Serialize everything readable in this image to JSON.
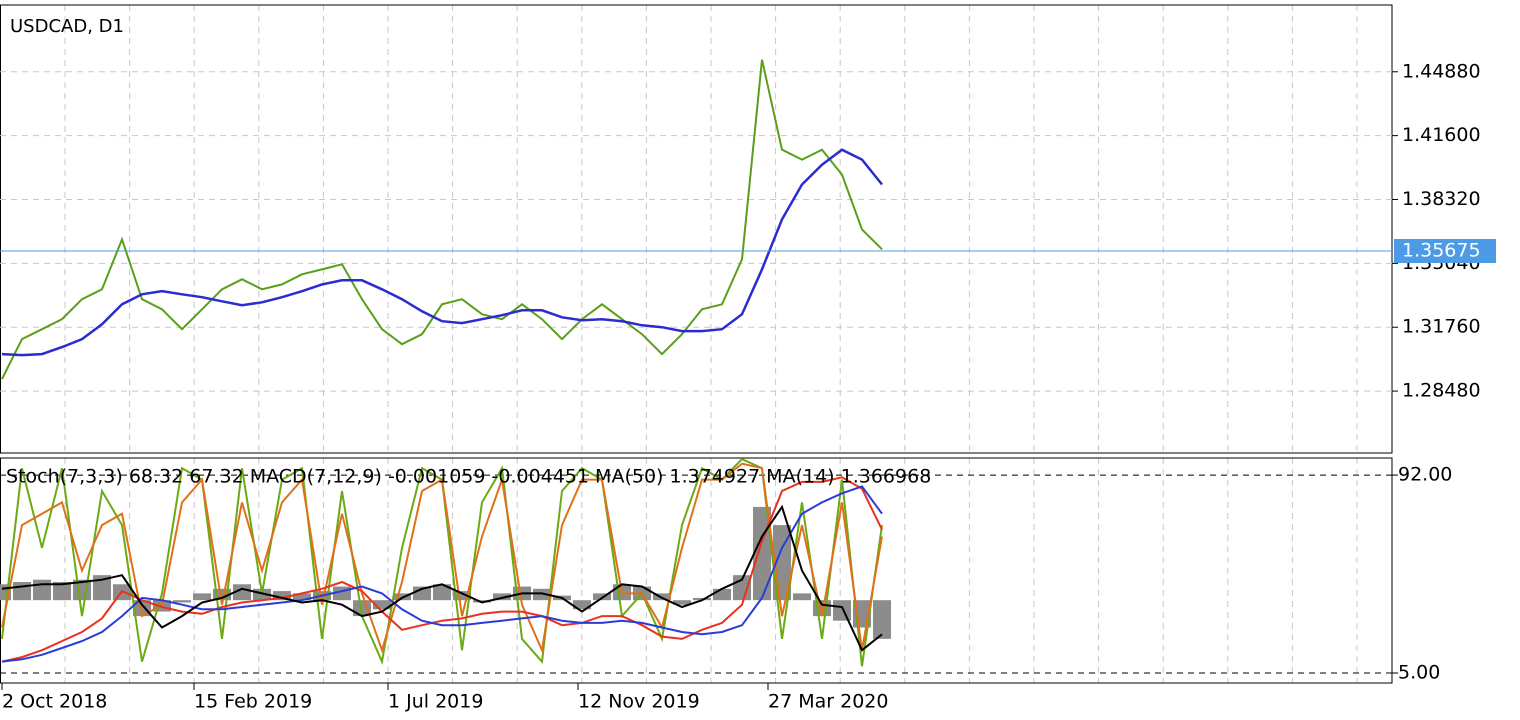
{
  "chart_data": [
    {
      "type": "line",
      "title": "USDCAD, D1",
      "x": [
        0,
        10,
        20,
        30,
        40,
        50,
        60,
        70,
        80,
        90,
        100,
        110,
        120,
        130,
        140,
        150,
        160,
        170,
        180,
        190,
        200,
        210,
        220,
        230,
        240,
        250,
        260,
        270,
        280,
        290,
        300,
        310,
        320,
        330,
        340,
        350,
        360,
        370,
        380,
        390,
        400,
        410,
        420,
        430,
        440
      ],
      "series": [
        {
          "name": "Close",
          "color": "#5a9e1a",
          "values": [
            1.291,
            1.3115,
            1.3166,
            1.3217,
            1.332,
            1.3371,
            1.3627,
            1.332,
            1.3268,
            1.3166,
            1.3268,
            1.3371,
            1.3422,
            1.3371,
            1.3396,
            1.3448,
            1.3473,
            1.3499,
            1.332,
            1.3166,
            1.3089,
            1.314,
            1.3294,
            1.332,
            1.3243,
            1.3217,
            1.3294,
            1.3217,
            1.3115,
            1.3217,
            1.3294,
            1.3217,
            1.314,
            1.3038,
            1.314,
            1.3268,
            1.3294,
            1.3525,
            1.455,
            1.4088,
            1.4037,
            1.4088,
            1.396,
            1.3678,
            1.3576
          ]
        },
        {
          "name": "MA(50)",
          "color": "#2b2bd0",
          "values": [
            1.3038,
            1.3033,
            1.3038,
            1.3074,
            1.3115,
            1.3191,
            1.3294,
            1.3345,
            1.3361,
            1.3345,
            1.333,
            1.3309,
            1.3289,
            1.3304,
            1.333,
            1.3361,
            1.3396,
            1.3417,
            1.3417,
            1.3371,
            1.332,
            1.3258,
            1.3207,
            1.3197,
            1.3217,
            1.3238,
            1.3263,
            1.3263,
            1.3227,
            1.3212,
            1.3217,
            1.3207,
            1.3186,
            1.3176,
            1.3156,
            1.3156,
            1.3166,
            1.3243,
            1.3473,
            1.373,
            1.3909,
            1.4011,
            1.4088,
            1.4037,
            1.3909
          ]
        }
      ],
      "current_price": {
        "value": 1.35675,
        "label": "1.35675",
        "color": "#4d9be6"
      },
      "xlim": [
        -1,
        695
      ],
      "xticks": [
        {
          "value": 0,
          "label": "2 Oct 2018"
        },
        {
          "value": 96,
          "label": "15 Feb 2019"
        },
        {
          "value": 193,
          "label": "1 Jul 2019"
        },
        {
          "value": 288,
          "label": "12 Nov 2019"
        },
        {
          "value": 383,
          "label": "27 Mar 2020"
        }
      ],
      "ylim": [
        1.253,
        1.4831
      ],
      "yticks": [
        {
          "value": 1.2848,
          "label": "1.28480"
        },
        {
          "value": 1.3176,
          "label": "1.31760"
        },
        {
          "value": 1.3504,
          "label": "1.35040"
        },
        {
          "value": 1.3832,
          "label": "1.38320"
        },
        {
          "value": 1.416,
          "label": "1.41600"
        },
        {
          "value": 1.4488,
          "label": "1.44880"
        }
      ],
      "grid": true
    },
    {
      "type": "line",
      "title": "Stoch(7,3,3) 68.32 67.32 MACD(7,12,9) -0.001059 -0.004451 MA(50) 1.374927 MA(14) 1.366968",
      "x": [
        0,
        10,
        20,
        30,
        40,
        50,
        60,
        70,
        80,
        90,
        100,
        110,
        120,
        130,
        140,
        150,
        160,
        170,
        180,
        190,
        200,
        210,
        220,
        230,
        240,
        250,
        260,
        270,
        280,
        290,
        300,
        310,
        320,
        330,
        340,
        350,
        360,
        370,
        380,
        390,
        400,
        410,
        420,
        430,
        440
      ],
      "series": [
        {
          "name": "MACD",
          "color": "#8c8c8c",
          "style": "histogram",
          "baseline": 37,
          "values": [
            44,
            45,
            46,
            45,
            46,
            48,
            44,
            30,
            32,
            36,
            40,
            42,
            44,
            42,
            41,
            40,
            41,
            43,
            30,
            33,
            40,
            43,
            44,
            41,
            36,
            40,
            43,
            42,
            39,
            33,
            40,
            44,
            43,
            40,
            35,
            38,
            42,
            48,
            78,
            70,
            40,
            30,
            28,
            25,
            20
          ]
        },
        {
          "name": "%K",
          "color": "#6aaa14",
          "values": [
            20,
            95,
            60,
            95,
            30,
            85,
            70,
            10,
            40,
            95,
            90,
            20,
            95,
            40,
            90,
            95,
            20,
            85,
            30,
            10,
            60,
            95,
            90,
            15,
            80,
            95,
            20,
            10,
            85,
            95,
            90,
            30,
            40,
            20,
            70,
            95,
            90,
            99,
            95,
            20,
            80,
            20,
            90,
            8,
            70
          ]
        },
        {
          "name": "%D",
          "color": "#e0701a",
          "values": [
            25,
            70,
            75,
            80,
            50,
            70,
            75,
            30,
            35,
            80,
            90,
            35,
            80,
            50,
            80,
            90,
            35,
            75,
            40,
            15,
            45,
            85,
            90,
            30,
            65,
            90,
            35,
            15,
            70,
            90,
            90,
            40,
            40,
            25,
            60,
            90,
            90,
            97,
            95,
            30,
            70,
            30,
            80,
            15,
            65
          ]
        },
        {
          "name": "MA(14)",
          "color": "#e8321e",
          "values": [
            10,
            12,
            15,
            19,
            23,
            29,
            41,
            37,
            34,
            32,
            31,
            34,
            36,
            37,
            38,
            40,
            42,
            45,
            41,
            32,
            24,
            26,
            28,
            29,
            31,
            32,
            32,
            30,
            26,
            27,
            30,
            30,
            26,
            21,
            20,
            24,
            27,
            35,
            63,
            85,
            89,
            89,
            91,
            86,
            68
          ]
        },
        {
          "name": "MA(50)",
          "color": "#2a3bd8",
          "values": [
            10,
            11,
            13,
            16,
            19,
            23,
            30,
            38,
            37,
            35,
            33,
            33,
            34,
            35,
            36,
            37,
            39,
            41,
            43,
            40,
            33,
            28,
            26,
            26,
            27,
            28,
            29,
            30,
            28,
            27,
            27,
            28,
            27,
            25,
            23,
            22,
            23,
            26,
            38,
            60,
            75,
            80,
            84,
            87,
            75
          ]
        },
        {
          "name": "Signal",
          "color": "#000000",
          "values": [
            42,
            43,
            44,
            44,
            45,
            46,
            48,
            35,
            25,
            30,
            36,
            38,
            42,
            40,
            38,
            36,
            37,
            35,
            30,
            32,
            38,
            42,
            44,
            40,
            36,
            38,
            40,
            40,
            38,
            32,
            38,
            44,
            43,
            38,
            34,
            37,
            42,
            46,
            65,
            78,
            50,
            35,
            34,
            15,
            22
          ]
        }
      ],
      "xlim": [
        -1,
        695
      ],
      "ylim": [
        0.6,
        99.5
      ],
      "yticks": [
        {
          "value": 5,
          "label": "5.00"
        },
        {
          "value": 92,
          "label": "92.00"
        }
      ]
    }
  ]
}
